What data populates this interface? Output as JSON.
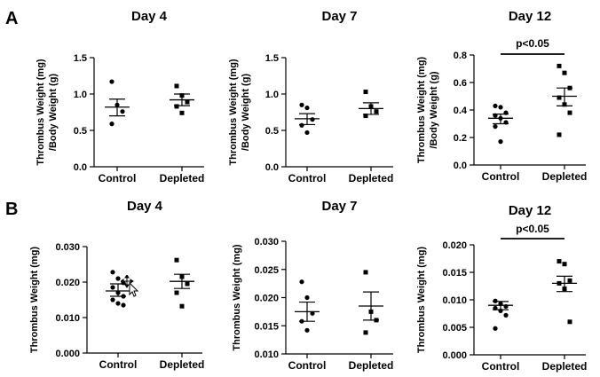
{
  "panel_labels": {
    "A": "A",
    "B": "B"
  },
  "annotations": {
    "significance": "p<0.05"
  },
  "chart_data": [
    {
      "id": "A-day4",
      "type": "scatter",
      "title": "Day 4",
      "ylabel": [
        "Thrombus Weight (mg)",
        "/Body Weight (g)"
      ],
      "ylim": [
        0,
        1.5
      ],
      "yticks": [
        0,
        0.5,
        1.0,
        1.5
      ],
      "ytick_labels": [
        "0.0",
        "0.5",
        "1.0",
        "1.5"
      ],
      "categories": [
        "Control",
        "Depleted"
      ],
      "series": [
        {
          "name": "Control",
          "marker": "circle",
          "points": [
            1.17,
            0.85,
            0.76,
            0.59
          ],
          "mean": 0.82,
          "sem_low": 0.7,
          "sem_high": 0.93
        },
        {
          "name": "Depleted",
          "marker": "square",
          "points": [
            1.11,
            0.98,
            0.89,
            0.83,
            0.74
          ],
          "mean": 0.92,
          "sem_low": 0.84,
          "sem_high": 1.0
        }
      ]
    },
    {
      "id": "A-day7",
      "type": "scatter",
      "title": "Day 7",
      "ylabel": [
        "Thrombus Weight (mg)",
        "/Body Weight (g)"
      ],
      "ylim": [
        0,
        1.5
      ],
      "yticks": [
        0,
        0.5,
        1.0,
        1.5
      ],
      "ytick_labels": [
        "0.0",
        "0.5",
        "1.0",
        "1.5"
      ],
      "categories": [
        "Control",
        "Depleted"
      ],
      "series": [
        {
          "name": "Control",
          "marker": "circle",
          "points": [
            0.85,
            0.81,
            0.65,
            0.57,
            0.47
          ],
          "mean": 0.66,
          "sem_low": 0.58,
          "sem_high": 0.73
        },
        {
          "name": "Depleted",
          "marker": "square",
          "points": [
            1.03,
            0.83,
            0.76,
            0.7
          ],
          "mean": 0.8,
          "sem_low": 0.72,
          "sem_high": 0.88
        }
      ]
    },
    {
      "id": "A-day12",
      "type": "scatter",
      "title": "Day 12",
      "ylabel": [
        "Thrombus Weight (mg)",
        "/Body Weight (g)"
      ],
      "ylim": [
        0,
        0.8
      ],
      "yticks": [
        0,
        0.2,
        0.4,
        0.6,
        0.8
      ],
      "ytick_labels": [
        "0.0",
        "0.2",
        "0.4",
        "0.6",
        "0.8"
      ],
      "categories": [
        "Control",
        "Depleted"
      ],
      "significance": true,
      "series": [
        {
          "name": "Control",
          "marker": "circle",
          "points": [
            0.43,
            0.42,
            0.38,
            0.36,
            0.34,
            0.31,
            0.28,
            0.17
          ],
          "mean": 0.34,
          "sem_low": 0.3,
          "sem_high": 0.37
        },
        {
          "name": "Depleted",
          "marker": "square",
          "points": [
            0.72,
            0.67,
            0.56,
            0.49,
            0.44,
            0.38,
            0.22
          ],
          "mean": 0.5,
          "sem_low": 0.43,
          "sem_high": 0.56
        }
      ]
    },
    {
      "id": "B-day4",
      "type": "scatter",
      "title": "Day 4",
      "ylabel": [
        "Thrombus Weight (mg)"
      ],
      "ylim": [
        0,
        0.03
      ],
      "yticks": [
        0,
        0.01,
        0.02,
        0.03
      ],
      "ytick_labels": [
        "0.000",
        "0.010",
        "0.020",
        "0.030"
      ],
      "categories": [
        "Control",
        "Depleted"
      ],
      "series": [
        {
          "name": "Control",
          "marker": "circle",
          "points": [
            0.0228,
            0.021,
            0.0198,
            0.0185,
            0.017,
            0.016,
            0.015,
            0.014,
            0.0135
          ],
          "mean": 0.0175,
          "sem_low": 0.016,
          "sem_high": 0.0195
        },
        {
          "name": "Depleted",
          "marker": "square",
          "points": [
            0.0262,
            0.0215,
            0.0195,
            0.017,
            0.0132
          ],
          "mean": 0.0202,
          "sem_low": 0.0182,
          "sem_high": 0.0222
        }
      ]
    },
    {
      "id": "B-day7",
      "type": "scatter",
      "title": "Day 7",
      "ylabel": [
        "Thrombus Weight (mg)"
      ],
      "ylim": [
        0.01,
        0.03
      ],
      "yticks": [
        0.01,
        0.015,
        0.02,
        0.025,
        0.03
      ],
      "ytick_labels": [
        "0.010",
        "0.015",
        "0.020",
        "0.025",
        "0.030"
      ],
      "categories": [
        "Control",
        "Depleted"
      ],
      "series": [
        {
          "name": "Control",
          "marker": "circle",
          "points": [
            0.0228,
            0.02,
            0.0172,
            0.0158,
            0.0142
          ],
          "mean": 0.0175,
          "sem_low": 0.0158,
          "sem_high": 0.0192
        },
        {
          "name": "Depleted",
          "marker": "square",
          "points": [
            0.0245,
            0.0175,
            0.016,
            0.0138
          ],
          "mean": 0.0185,
          "sem_low": 0.016,
          "sem_high": 0.021
        }
      ]
    },
    {
      "id": "B-day12",
      "type": "scatter",
      "title": "Day 12",
      "ylabel": [
        "Thrombus Weight (mg)"
      ],
      "ylim": [
        0,
        0.02
      ],
      "yticks": [
        0,
        0.005,
        0.01,
        0.015,
        0.02
      ],
      "ytick_labels": [
        "0.000",
        "0.005",
        "0.010",
        "0.015",
        "0.020"
      ],
      "categories": [
        "Control",
        "Depleted"
      ],
      "significance": true,
      "series": [
        {
          "name": "Control",
          "marker": "circle",
          "points": [
            0.0098,
            0.0093,
            0.0088,
            0.0085,
            0.008,
            0.0072,
            0.0048
          ],
          "mean": 0.009,
          "sem_low": 0.0082,
          "sem_high": 0.0097
        },
        {
          "name": "Depleted",
          "marker": "square",
          "points": [
            0.017,
            0.0165,
            0.0135,
            0.013,
            0.012,
            0.006
          ],
          "mean": 0.013,
          "sem_low": 0.0115,
          "sem_high": 0.0143
        }
      ]
    }
  ]
}
